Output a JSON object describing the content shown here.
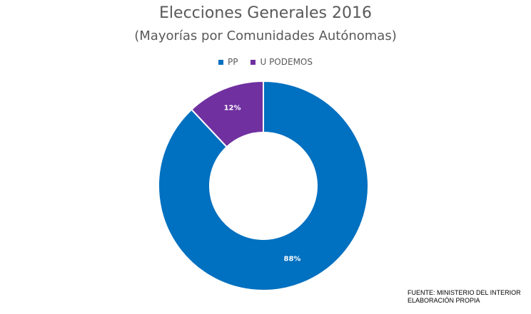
{
  "chart_data": {
    "type": "pie",
    "donut": true,
    "title": "Elecciones Generales 2016",
    "subtitle": "(Mayorías por Comunidades Autónomas)",
    "categories": [
      "PP",
      "U PODEMOS"
    ],
    "values": [
      88,
      12
    ],
    "data_labels": [
      "88%",
      "12%"
    ],
    "colors": [
      "#0070c0",
      "#7030a0"
    ],
    "legend_position": "top"
  },
  "source": {
    "line1": "FUENTE: MINISTERIO DEL INTERIOR",
    "line2": "ELABORACIÓN PROPIA"
  }
}
